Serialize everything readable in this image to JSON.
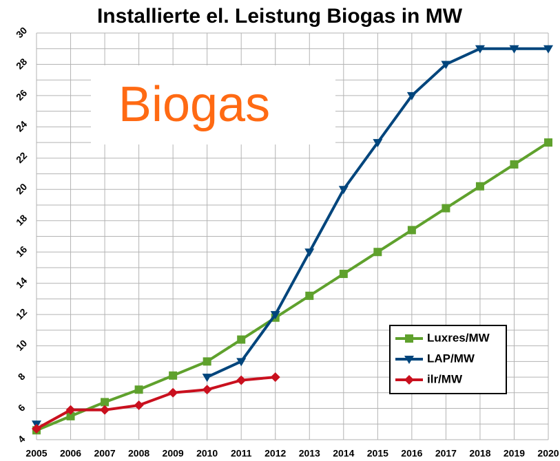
{
  "chart_data": {
    "type": "line",
    "title": "Installierte el. Leistung Biogas in MW",
    "annotation": "Biogas",
    "x": [
      2005,
      2006,
      2007,
      2008,
      2009,
      2010,
      2011,
      2012,
      2013,
      2014,
      2015,
      2016,
      2017,
      2018,
      2019,
      2020
    ],
    "xlim": [
      2005,
      2020
    ],
    "xticks": [
      2005,
      2006,
      2007,
      2008,
      2009,
      2010,
      2011,
      2012,
      2013,
      2014,
      2015,
      2016,
      2017,
      2018,
      2019,
      2020
    ],
    "ylim": [
      4,
      30
    ],
    "yticks": [
      4,
      6,
      8,
      10,
      12,
      14,
      16,
      18,
      20,
      22,
      24,
      26,
      28,
      30
    ],
    "minor_yticks": [
      5,
      7,
      9,
      11,
      13,
      15,
      17,
      19,
      21,
      23,
      25,
      27,
      29
    ],
    "grid": true,
    "legend": "lower right",
    "series": [
      {
        "name": "Luxres/MW",
        "color": "#5fa12d",
        "marker": "square",
        "values": [
          4.6,
          5.5,
          6.4,
          7.2,
          8.1,
          9.0,
          10.4,
          11.8,
          13.2,
          14.6,
          16.0,
          17.4,
          18.8,
          20.2,
          21.6,
          23.0
        ]
      },
      {
        "name": "LAP/MW",
        "color": "#00457c",
        "marker": "triangle-down",
        "values": [
          5.0,
          null,
          null,
          null,
          null,
          8.0,
          9.0,
          12.0,
          16.0,
          20.0,
          23.0,
          26.0,
          28.0,
          29.0,
          29.0,
          29.0
        ]
      },
      {
        "name": "ilr/MW",
        "color": "#c9101e",
        "marker": "diamond",
        "values": [
          4.7,
          5.9,
          5.9,
          6.2,
          7.0,
          7.2,
          7.8,
          8.0,
          null,
          null,
          null,
          null,
          null,
          null,
          null,
          null
        ]
      }
    ]
  }
}
